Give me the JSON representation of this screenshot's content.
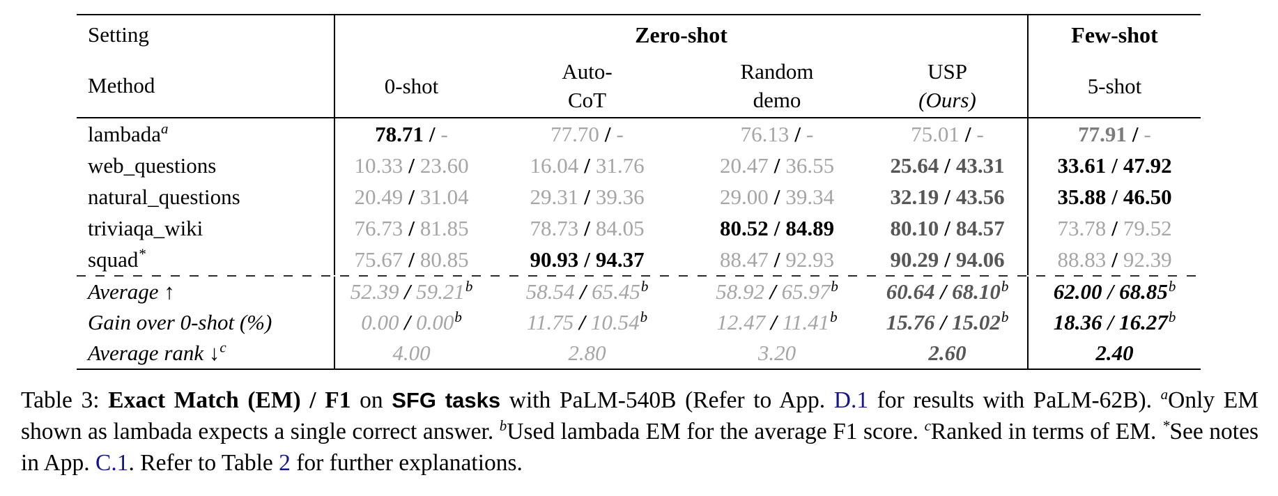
{
  "colors": {
    "text": "#000000",
    "muted_gray": "#a5a5a5",
    "bold_gray": "#7c7c7c",
    "dark_bold_gray": "#575757",
    "link_blue": "#16168c",
    "dashed_line": "#2b2b2b",
    "rule_black": "#000000"
  },
  "table": {
    "slash": "/",
    "header": {
      "setting": "Setting",
      "method": "Method",
      "zero_shot_group": "Zero-shot",
      "few_shot_group": "Few-shot",
      "columns": [
        {
          "line1": "0-shot",
          "line2": ""
        },
        {
          "line1": "Auto-",
          "line2": "CoT"
        },
        {
          "line1": "Random",
          "line2": "demo"
        },
        {
          "line1": "USP",
          "line2": "(Ours)"
        },
        {
          "line1": "5-shot",
          "line2": ""
        }
      ]
    },
    "rows": [
      {
        "label": "lambada",
        "labelSup": "a",
        "cells": [
          {
            "em": "78.71",
            "es": "bb",
            "f1": "-",
            "fs": "g",
            "sup": ""
          },
          {
            "em": "77.70",
            "es": "g",
            "f1": "-",
            "fs": "g",
            "sup": ""
          },
          {
            "em": "76.13",
            "es": "g",
            "f1": "-",
            "fs": "g",
            "sup": ""
          },
          {
            "em": "75.01",
            "es": "g",
            "f1": "-",
            "fs": "g",
            "sup": ""
          },
          {
            "em": "77.91",
            "es": "gb",
            "f1": "-",
            "fs": "g",
            "sup": ""
          }
        ]
      },
      {
        "label": "web_questions",
        "labelSup": "",
        "cells": [
          {
            "em": "10.33",
            "es": "g",
            "f1": "23.60",
            "fs": "g",
            "sup": ""
          },
          {
            "em": "16.04",
            "es": "g",
            "f1": "31.76",
            "fs": "g",
            "sup": ""
          },
          {
            "em": "20.47",
            "es": "g",
            "f1": "36.55",
            "fs": "g",
            "sup": ""
          },
          {
            "em": "25.64",
            "es": "db",
            "f1": "43.31",
            "fs": "db",
            "sup": ""
          },
          {
            "em": "33.61",
            "es": "bb",
            "f1": "47.92",
            "fs": "bb",
            "sup": ""
          }
        ]
      },
      {
        "label": "natural_questions",
        "labelSup": "",
        "cells": [
          {
            "em": "20.49",
            "es": "g",
            "f1": "31.04",
            "fs": "g",
            "sup": ""
          },
          {
            "em": "29.31",
            "es": "g",
            "f1": "39.36",
            "fs": "g",
            "sup": ""
          },
          {
            "em": "29.00",
            "es": "g",
            "f1": "39.34",
            "fs": "g",
            "sup": ""
          },
          {
            "em": "32.19",
            "es": "db",
            "f1": "43.56",
            "fs": "db",
            "sup": ""
          },
          {
            "em": "35.88",
            "es": "bb",
            "f1": "46.50",
            "fs": "bb",
            "sup": ""
          }
        ]
      },
      {
        "label": "triviaqa_wiki",
        "labelSup": "",
        "cells": [
          {
            "em": "76.73",
            "es": "g",
            "f1": "81.85",
            "fs": "g",
            "sup": ""
          },
          {
            "em": "78.73",
            "es": "g",
            "f1": "84.05",
            "fs": "g",
            "sup": ""
          },
          {
            "em": "80.52",
            "es": "bb",
            "f1": "84.89",
            "fs": "bb",
            "sup": ""
          },
          {
            "em": "80.10",
            "es": "db",
            "f1": "84.57",
            "fs": "db",
            "sup": ""
          },
          {
            "em": "73.78",
            "es": "g",
            "f1": "79.52",
            "fs": "g",
            "sup": ""
          }
        ]
      },
      {
        "label": "squad",
        "labelSup": "*",
        "cells": [
          {
            "em": "75.67",
            "es": "g",
            "f1": "80.85",
            "fs": "g",
            "sup": ""
          },
          {
            "em": "90.93",
            "es": "bb",
            "f1": "94.37",
            "fs": "bb",
            "sup": ""
          },
          {
            "em": "88.47",
            "es": "g",
            "f1": "92.93",
            "fs": "g",
            "sup": ""
          },
          {
            "em": "90.29",
            "es": "db",
            "f1": "94.06",
            "fs": "db",
            "sup": ""
          },
          {
            "em": "88.83",
            "es": "g",
            "f1": "92.39",
            "fs": "g",
            "sup": ""
          }
        ]
      }
    ],
    "summary_rows": [
      {
        "label": "Average ↑",
        "labelSup": "",
        "cells": [
          {
            "em": "52.39",
            "es": "g",
            "f1": "59.21",
            "fs": "g",
            "sup": "b"
          },
          {
            "em": "58.54",
            "es": "g",
            "f1": "65.45",
            "fs": "g",
            "sup": "b"
          },
          {
            "em": "58.92",
            "es": "g",
            "f1": "65.97",
            "fs": "g",
            "sup": "b"
          },
          {
            "em": "60.64",
            "es": "db",
            "f1": "68.10",
            "fs": "db",
            "sup": "b"
          },
          {
            "em": "62.00",
            "es": "bb",
            "f1": "68.85",
            "fs": "bb",
            "sup": "b"
          }
        ]
      },
      {
        "label": "Gain over 0-shot (%)",
        "labelSup": "",
        "cells": [
          {
            "em": "0.00",
            "es": "g",
            "f1": "0.00",
            "fs": "g",
            "sup": "b"
          },
          {
            "em": "11.75",
            "es": "g",
            "f1": "10.54",
            "fs": "g",
            "sup": "b"
          },
          {
            "em": "12.47",
            "es": "g",
            "f1": "11.41",
            "fs": "g",
            "sup": "b"
          },
          {
            "em": "15.76",
            "es": "db",
            "f1": "15.02",
            "fs": "db",
            "sup": "b"
          },
          {
            "em": "18.36",
            "es": "bb",
            "f1": "16.27",
            "fs": "bb",
            "sup": "b"
          }
        ]
      },
      {
        "label": "Average rank ↓",
        "labelSup": "c",
        "cells": [
          {
            "em": "4.00",
            "es": "g",
            "f1": null,
            "fs": "",
            "sup": ""
          },
          {
            "em": "2.80",
            "es": "g",
            "f1": null,
            "fs": "",
            "sup": ""
          },
          {
            "em": "3.20",
            "es": "g",
            "f1": null,
            "fs": "",
            "sup": ""
          },
          {
            "em": "2.60",
            "es": "db",
            "f1": null,
            "fs": "",
            "sup": ""
          },
          {
            "em": "2.40",
            "es": "bb",
            "f1": null,
            "fs": "",
            "sup": ""
          }
        ]
      }
    ]
  },
  "caption": {
    "segments": [
      {
        "t": "Table 3: ",
        "s": "plain"
      },
      {
        "t": "Exact Match (EM) / F1",
        "s": "bold"
      },
      {
        "t": " on ",
        "s": "plain"
      },
      {
        "t": "SFG tasks",
        "s": "sansbold"
      },
      {
        "t": " with PaLM-540B (Refer to App. ",
        "s": "plain"
      },
      {
        "t": "D.1",
        "s": "link"
      },
      {
        "t": " for results with PaLM-62B). ",
        "s": "plain"
      },
      {
        "t": "a",
        "s": "sup"
      },
      {
        "t": "Only EM shown as lambada expects a single correct answer. ",
        "s": "plain"
      },
      {
        "t": "b",
        "s": "sup"
      },
      {
        "t": "Used lambada EM for the average F1 score. ",
        "s": "plain"
      },
      {
        "t": "c",
        "s": "sup"
      },
      {
        "t": "Ranked in terms of EM. ",
        "s": "plain"
      },
      {
        "t": "*",
        "s": "sup"
      },
      {
        "t": "See notes in App. ",
        "s": "plain"
      },
      {
        "t": "C.1",
        "s": "link"
      },
      {
        "t": ". Refer to Table ",
        "s": "plain"
      },
      {
        "t": "2",
        "s": "link"
      },
      {
        "t": " for further explanations.",
        "s": "plain"
      }
    ]
  }
}
